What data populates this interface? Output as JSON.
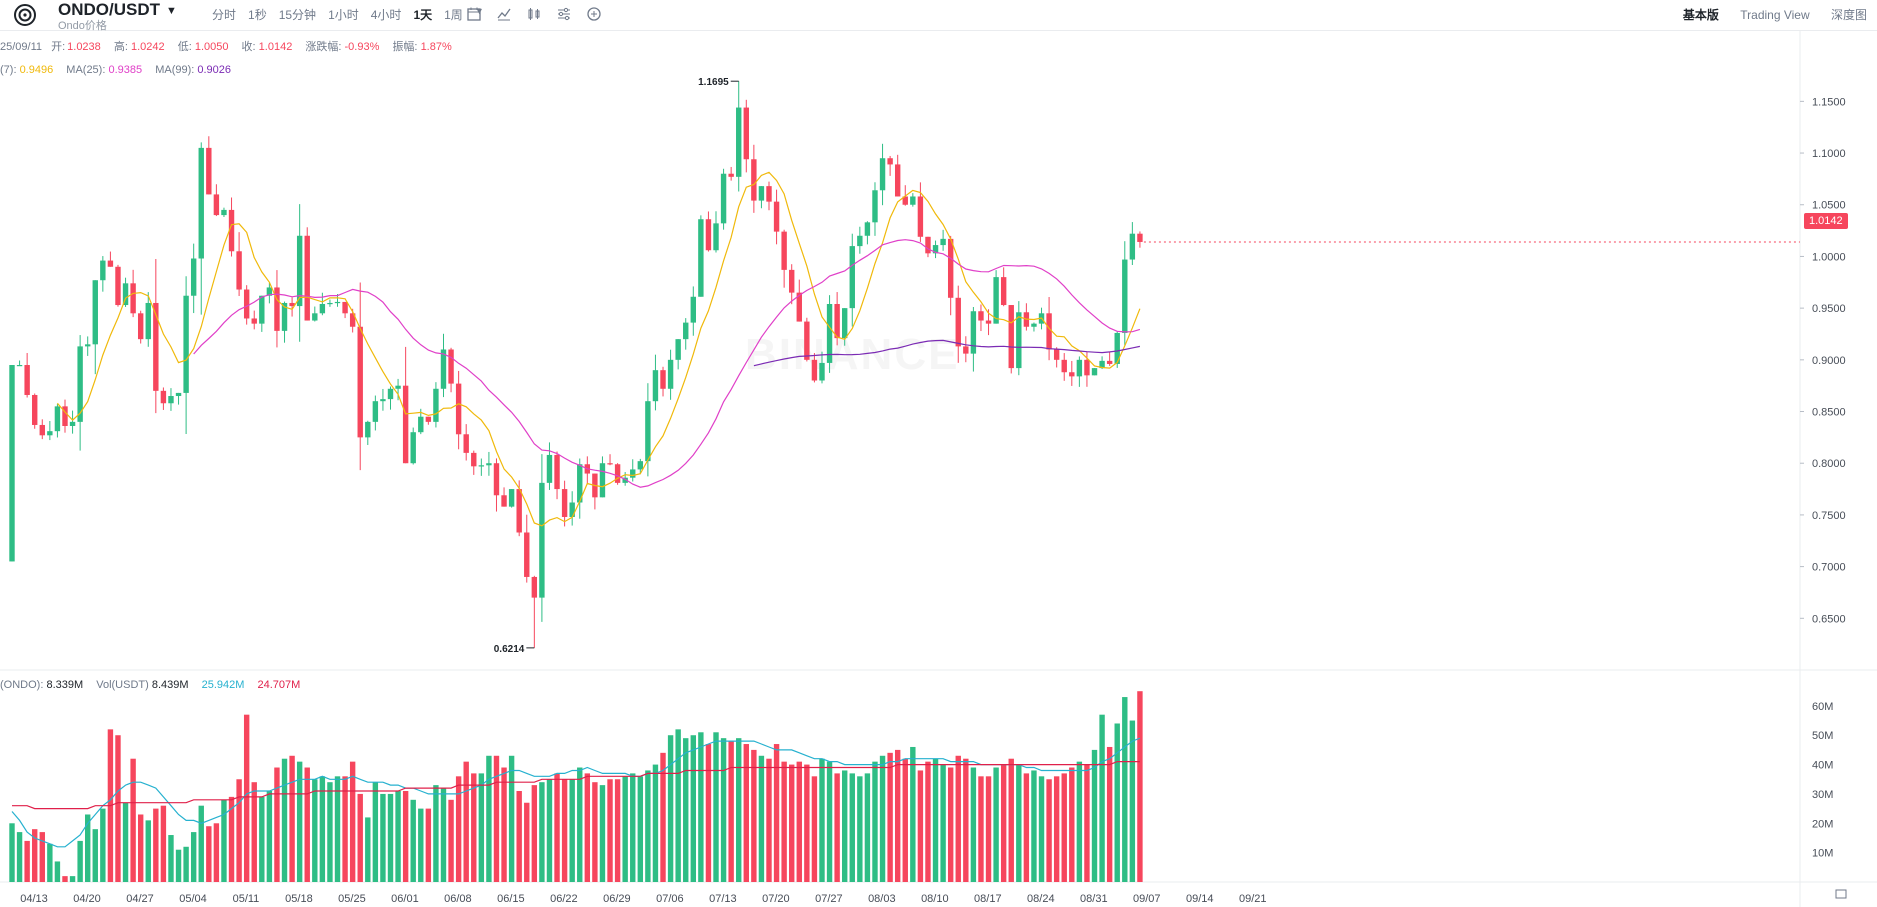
{
  "header": {
    "pair": "ONDO/USDT",
    "subtitle": "Ondo价格",
    "intervals": [
      "分时",
      "1秒",
      "15分钟",
      "1小时",
      "4小时",
      "1天",
      "1周"
    ],
    "active_interval": "1天",
    "views": [
      "基本版",
      "Trading View",
      "深度图"
    ],
    "active_view": "基本版"
  },
  "ohlc": {
    "date": "25/09/11",
    "open_label": "开:",
    "open": "1.0238",
    "high_label": "高:",
    "high": "1.0242",
    "low_label": "低:",
    "low": "1.0050",
    "close_label": "收:",
    "close": "1.0142",
    "change_label": "涨跌幅:",
    "change": "-0.93%",
    "amp_label": "振幅:",
    "amp": "1.87%"
  },
  "ma_legend": {
    "ma7_label": "(7):",
    "ma7": "0.9496",
    "ma25_label": "MA(25):",
    "ma25": "0.9385",
    "ma99_label": "MA(99):",
    "ma99": "0.9026"
  },
  "vol_legend": {
    "vol_label": "(ONDO):",
    "vol": "8.339M",
    "volq_label": "Vol(USDT)",
    "volq": "8.439M",
    "ma1": "25.942M",
    "ma2": "24.707M"
  },
  "last_price": "1.0142",
  "watermark": "BINANCE",
  "colors": {
    "up": "#2ebd85",
    "down": "#f6465d",
    "ma7": "#f0b90b",
    "ma25": "#e040c8",
    "ma99": "#7b2bb4",
    "vma1": "#26b1cf",
    "vma2": "#e0204a"
  },
  "chart_data": {
    "type": "candlestick",
    "title": "ONDO/USDT",
    "interval": "1天",
    "start_date": "2025-04-13",
    "price_axis": {
      "ticks": [
        "1.1500",
        "1.1000",
        "1.0500",
        "1.0000",
        "0.9500",
        "0.9000",
        "0.8500",
        "0.8000",
        "0.7500",
        "0.7000",
        "0.6500"
      ],
      "range": [
        0.6,
        1.19
      ]
    },
    "volume_axis": {
      "ticks": [
        "60M",
        "50M",
        "40M",
        "30M",
        "20M",
        "10M"
      ],
      "range": [
        0,
        62
      ]
    },
    "x_ticks": [
      "04/13",
      "04/20",
      "04/27",
      "05/04",
      "05/11",
      "05/18",
      "05/25",
      "06/01",
      "06/08",
      "06/15",
      "06/22",
      "06/29",
      "07/06",
      "07/13",
      "07/20",
      "07/27",
      "08/03",
      "08/10",
      "08/17",
      "08/24",
      "08/31",
      "09/07",
      "09/14",
      "09/21"
    ],
    "high_label": "1.1695",
    "low_label": "0.6214",
    "closes": [
      0.895,
      0.895,
      0.866,
      0.837,
      0.827,
      0.831,
      0.855,
      0.836,
      0.84,
      0.913,
      0.915,
      0.977,
      0.996,
      0.99,
      0.953,
      0.974,
      0.945,
      0.92,
      0.955,
      0.87,
      0.858,
      0.865,
      0.868,
      0.962,
      0.998,
      1.105,
      1.06,
      1.04,
      1.045,
      1.005,
      0.968,
      0.94,
      0.935,
      0.962,
      0.97,
      0.928,
      0.955,
      0.952,
      1.02,
      0.938,
      0.945,
      0.954,
      0.955,
      0.956,
      0.945,
      0.932,
      0.825,
      0.84,
      0.86,
      0.862,
      0.872,
      0.875,
      0.8,
      0.83,
      0.845,
      0.84,
      0.872,
      0.91,
      0.877,
      0.828,
      0.81,
      0.797,
      0.798,
      0.8,
      0.769,
      0.758,
      0.775,
      0.733,
      0.69,
      0.67,
      0.781,
      0.808,
      0.775,
      0.748,
      0.762,
      0.799,
      0.79,
      0.767,
      0.8,
      0.799,
      0.781,
      0.786,
      0.794,
      0.802,
      0.86,
      0.89,
      0.872,
      0.9,
      0.92,
      0.936,
      0.961,
      1.036,
      1.006,
      1.032,
      1.08,
      1.077,
      1.144,
      1.094,
      1.054,
      1.068,
      1.053,
      1.024,
      0.987,
      0.965,
      0.937,
      0.9,
      0.88,
      0.897,
      0.954,
      0.921,
      0.95,
      1.01,
      1.02,
      1.033,
      1.064,
      1.095,
      1.089,
      1.058,
      1.05,
      1.058,
      1.019,
      1.003,
      1.011,
      1.017,
      0.96,
      0.913,
      0.906,
      0.947,
      0.938,
      0.935,
      0.98,
      0.953,
      0.892,
      0.946,
      0.932,
      0.935,
      0.945,
      0.91,
      0.9,
      0.888,
      0.884,
      0.9,
      0.885,
      0.892,
      0.899,
      0.896,
      0.926,
      0.997,
      1.022,
      1.014
    ],
    "volumes": [
      20,
      17,
      14,
      18,
      17,
      13,
      7,
      2,
      2,
      14,
      23,
      18,
      25,
      52,
      50,
      27,
      42,
      23,
      21,
      25,
      26,
      16,
      11,
      12,
      17,
      26,
      19,
      20,
      28,
      29,
      35,
      57,
      34,
      29,
      31,
      39,
      42,
      43,
      41,
      39,
      35,
      36,
      34,
      36,
      36,
      41,
      30,
      22,
      34,
      30,
      30,
      31,
      31,
      28,
      25,
      25,
      33,
      32,
      28,
      36,
      41,
      37,
      37,
      43,
      43,
      39,
      43,
      31,
      27,
      33,
      34,
      35,
      37,
      35,
      35,
      39,
      37,
      34,
      33,
      35,
      35,
      36,
      37,
      36,
      38,
      40,
      44,
      50,
      52,
      49,
      50,
      51,
      47,
      51,
      49,
      48,
      49,
      47,
      45,
      43,
      42,
      47,
      41,
      40,
      41,
      40,
      36,
      42,
      41,
      37,
      38,
      37,
      36,
      37,
      41,
      43,
      44,
      45,
      42,
      46,
      38,
      41,
      42,
      40,
      39,
      43,
      42,
      39,
      36,
      36,
      39,
      40,
      42,
      40,
      37,
      38,
      36,
      35,
      36,
      37,
      39,
      41,
      40,
      45,
      57,
      46,
      54,
      63,
      55,
      65
    ],
    "volume_ma1": [
      24,
      21,
      17,
      15,
      14,
      13,
      12,
      12,
      14,
      16,
      20,
      23,
      26,
      28,
      31,
      33,
      34,
      34,
      33,
      32,
      29,
      26,
      23,
      21,
      21,
      20,
      21,
      22,
      23,
      25,
      27,
      30,
      31,
      31,
      31,
      32,
      33,
      34,
      35,
      35,
      35,
      36,
      35,
      35,
      35,
      36,
      35,
      34,
      34,
      34,
      33,
      33,
      32,
      32,
      31,
      30,
      30,
      30,
      30,
      30,
      31,
      32,
      33,
      35,
      36,
      37,
      38,
      38,
      37,
      36,
      36,
      36,
      37,
      37,
      38,
      38,
      39,
      38,
      37,
      37,
      37,
      37,
      36,
      36,
      37,
      37,
      38,
      40,
      42,
      44,
      45,
      46,
      47,
      48,
      48,
      48,
      48,
      48,
      48,
      47,
      46,
      45,
      45,
      45,
      44,
      43,
      42,
      42,
      41,
      41,
      40,
      40,
      40,
      40,
      40,
      40,
      41,
      41,
      42,
      42,
      42,
      42,
      42,
      42,
      41,
      41,
      41,
      41,
      40,
      40,
      40,
      40,
      40,
      40,
      39,
      39,
      38,
      38,
      38,
      38,
      38,
      38,
      38,
      39,
      41,
      42,
      44,
      46,
      48,
      49
    ],
    "volume_ma2": [
      26,
      26,
      26,
      25,
      25,
      25,
      25,
      25,
      25,
      25,
      25,
      26,
      26,
      26,
      27,
      27,
      27,
      27,
      27,
      27,
      27,
      27,
      27,
      27,
      28,
      28,
      28,
      28,
      28,
      28,
      29,
      29,
      29,
      29,
      30,
      30,
      30,
      30,
      30,
      30,
      31,
      31,
      31,
      31,
      31,
      31,
      31,
      31,
      31,
      31,
      31,
      31,
      32,
      32,
      32,
      32,
      32,
      32,
      32,
      33,
      33,
      33,
      33,
      33,
      34,
      34,
      34,
      34,
      34,
      34,
      35,
      35,
      35,
      35,
      35,
      35,
      36,
      36,
      36,
      36,
      36,
      36,
      36,
      36,
      37,
      37,
      37,
      37,
      37,
      38,
      38,
      38,
      38,
      38,
      38,
      39,
      39,
      39,
      39,
      39,
      39,
      39,
      39,
      39,
      39,
      39,
      39,
      39,
      39,
      39,
      39,
      39,
      39,
      39,
      39,
      39,
      39,
      40,
      40,
      40,
      40,
      40,
      40,
      40,
      40,
      40,
      40,
      40,
      40,
      40,
      40,
      40,
      40,
      40,
      40,
      40,
      40,
      40,
      40,
      40,
      40,
      40,
      40,
      40,
      40,
      40,
      41,
      41,
      41,
      41
    ]
  }
}
